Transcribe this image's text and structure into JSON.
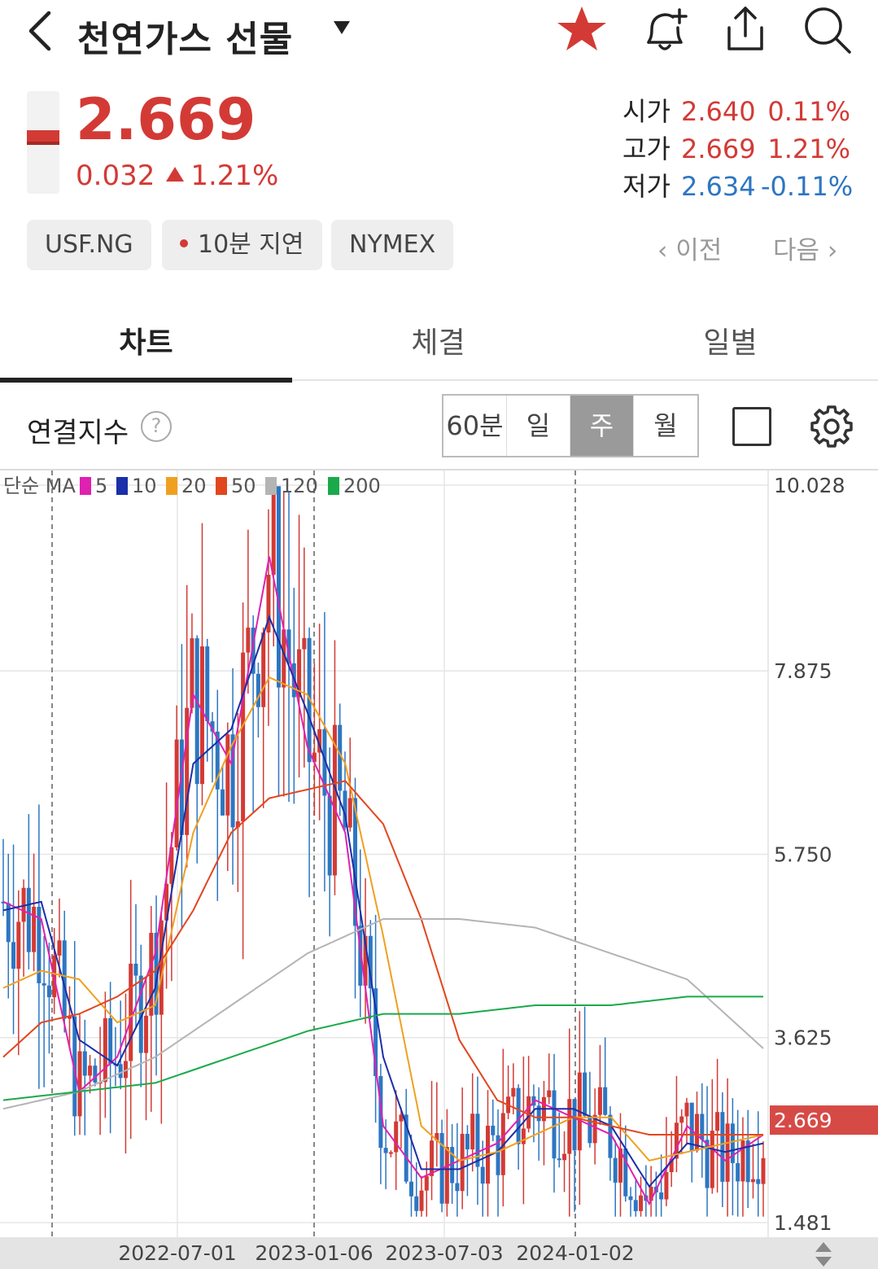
{
  "header": {
    "title": "천연가스 선물",
    "icons": [
      "back-arrow-icon",
      "caret-down-icon",
      "star-icon",
      "bell-plus-icon",
      "share-icon",
      "search-icon"
    ]
  },
  "quote": {
    "price": "2.669",
    "change": "0.032",
    "change_pct": "1.21%",
    "open_label": "시가",
    "open": "2.640",
    "open_pct": "0.11%",
    "high_label": "고가",
    "high": "2.669",
    "high_pct": "1.21%",
    "low_label": "저가",
    "low": "2.634",
    "low_pct": "-0.11%"
  },
  "chips": {
    "symbol": "USF.NG",
    "delay": "10분 지연",
    "exchange": "NYMEX",
    "prev": "이전",
    "next": "다음"
  },
  "tabs": [
    {
      "label": "차트",
      "active": true
    },
    {
      "label": "체결",
      "active": false
    },
    {
      "label": "일별",
      "active": false
    }
  ],
  "chart_toolbar": {
    "label": "연결지수",
    "help": "?",
    "periods": [
      {
        "label": "60분",
        "active": false
      },
      {
        "label": "일",
        "active": false
      },
      {
        "label": "주",
        "active": true
      },
      {
        "label": "월",
        "active": false
      }
    ]
  },
  "chart_data": {
    "type": "candlestick",
    "legend": {
      "prefix": "단순 MA",
      "items": [
        {
          "label": "5",
          "color": "#e020b0"
        },
        {
          "label": "10",
          "color": "#1a2fa8"
        },
        {
          "label": "20",
          "color": "#f0a020"
        },
        {
          "label": "50",
          "color": "#e2461e"
        },
        {
          "label": "120",
          "color": "#b4b4b4"
        },
        {
          "label": "200",
          "color": "#1aaa4a"
        }
      ]
    },
    "y_ticks": [
      "10.028",
      "7.875",
      "5.750",
      "3.625",
      "1.481"
    ],
    "ylim": [
      1.481,
      10.028
    ],
    "x_ticks": [
      "2022-07-01",
      "2023-01-06",
      "2023-07-03",
      "2024-01-02"
    ],
    "current_price_label": "2.669",
    "colors": {
      "up": "#d33a35",
      "down": "#2d76c2"
    },
    "ma_series": [
      {
        "name": "5",
        "points": [
          [
            0,
            5.2
          ],
          [
            4,
            5.0
          ],
          [
            8,
            3.0
          ],
          [
            12,
            3.4
          ],
          [
            16,
            4.6
          ],
          [
            20,
            7.6
          ],
          [
            24,
            6.8
          ],
          [
            28,
            9.2
          ],
          [
            32,
            7.0
          ],
          [
            36,
            6.0
          ],
          [
            40,
            2.6
          ],
          [
            44,
            2.0
          ],
          [
            48,
            2.2
          ],
          [
            52,
            2.4
          ],
          [
            56,
            2.9
          ],
          [
            60,
            2.7
          ],
          [
            64,
            2.5
          ],
          [
            68,
            1.7
          ],
          [
            72,
            2.6
          ],
          [
            76,
            2.2
          ],
          [
            80,
            2.5
          ]
        ]
      },
      {
        "name": "10",
        "points": [
          [
            0,
            5.1
          ],
          [
            4,
            5.2
          ],
          [
            8,
            3.6
          ],
          [
            12,
            3.3
          ],
          [
            16,
            4.2
          ],
          [
            20,
            6.8
          ],
          [
            24,
            7.2
          ],
          [
            28,
            8.5
          ],
          [
            32,
            7.4
          ],
          [
            36,
            6.2
          ],
          [
            40,
            3.4
          ],
          [
            44,
            2.1
          ],
          [
            48,
            2.1
          ],
          [
            52,
            2.3
          ],
          [
            56,
            2.8
          ],
          [
            60,
            2.8
          ],
          [
            64,
            2.6
          ],
          [
            68,
            1.9
          ],
          [
            72,
            2.4
          ],
          [
            76,
            2.3
          ],
          [
            80,
            2.4
          ]
        ]
      },
      {
        "name": "20",
        "points": [
          [
            0,
            4.2
          ],
          [
            4,
            4.4
          ],
          [
            8,
            4.3
          ],
          [
            12,
            3.8
          ],
          [
            16,
            4.0
          ],
          [
            20,
            6.0
          ],
          [
            24,
            7.0
          ],
          [
            28,
            7.8
          ],
          [
            32,
            7.6
          ],
          [
            36,
            6.8
          ],
          [
            40,
            4.8
          ],
          [
            44,
            2.6
          ],
          [
            48,
            2.2
          ],
          [
            52,
            2.3
          ],
          [
            56,
            2.5
          ],
          [
            60,
            2.7
          ],
          [
            64,
            2.7
          ],
          [
            68,
            2.2
          ],
          [
            72,
            2.3
          ],
          [
            76,
            2.4
          ],
          [
            80,
            2.5
          ]
        ]
      },
      {
        "name": "50",
        "points": [
          [
            0,
            3.4
          ],
          [
            4,
            3.8
          ],
          [
            8,
            3.9
          ],
          [
            12,
            4.1
          ],
          [
            16,
            4.4
          ],
          [
            20,
            5.1
          ],
          [
            24,
            6.0
          ],
          [
            28,
            6.4
          ],
          [
            32,
            6.5
          ],
          [
            36,
            6.6
          ],
          [
            40,
            6.1
          ],
          [
            44,
            5.0
          ],
          [
            48,
            3.6
          ],
          [
            52,
            2.9
          ],
          [
            56,
            2.7
          ],
          [
            60,
            2.7
          ],
          [
            64,
            2.6
          ],
          [
            68,
            2.5
          ],
          [
            72,
            2.5
          ],
          [
            76,
            2.5
          ],
          [
            80,
            2.5
          ]
        ]
      },
      {
        "name": "120",
        "points": [
          [
            0,
            2.8
          ],
          [
            8,
            3.0
          ],
          [
            16,
            3.4
          ],
          [
            24,
            4.0
          ],
          [
            32,
            4.6
          ],
          [
            40,
            5.0
          ],
          [
            48,
            5.0
          ],
          [
            56,
            4.9
          ],
          [
            64,
            4.6
          ],
          [
            72,
            4.3
          ],
          [
            80,
            3.5
          ]
        ]
      },
      {
        "name": "200",
        "points": [
          [
            0,
            2.9
          ],
          [
            8,
            3.0
          ],
          [
            16,
            3.1
          ],
          [
            24,
            3.4
          ],
          [
            32,
            3.7
          ],
          [
            40,
            3.9
          ],
          [
            48,
            3.9
          ],
          [
            56,
            4.0
          ],
          [
            64,
            4.0
          ],
          [
            72,
            4.1
          ],
          [
            80,
            4.1
          ]
        ]
      }
    ]
  }
}
